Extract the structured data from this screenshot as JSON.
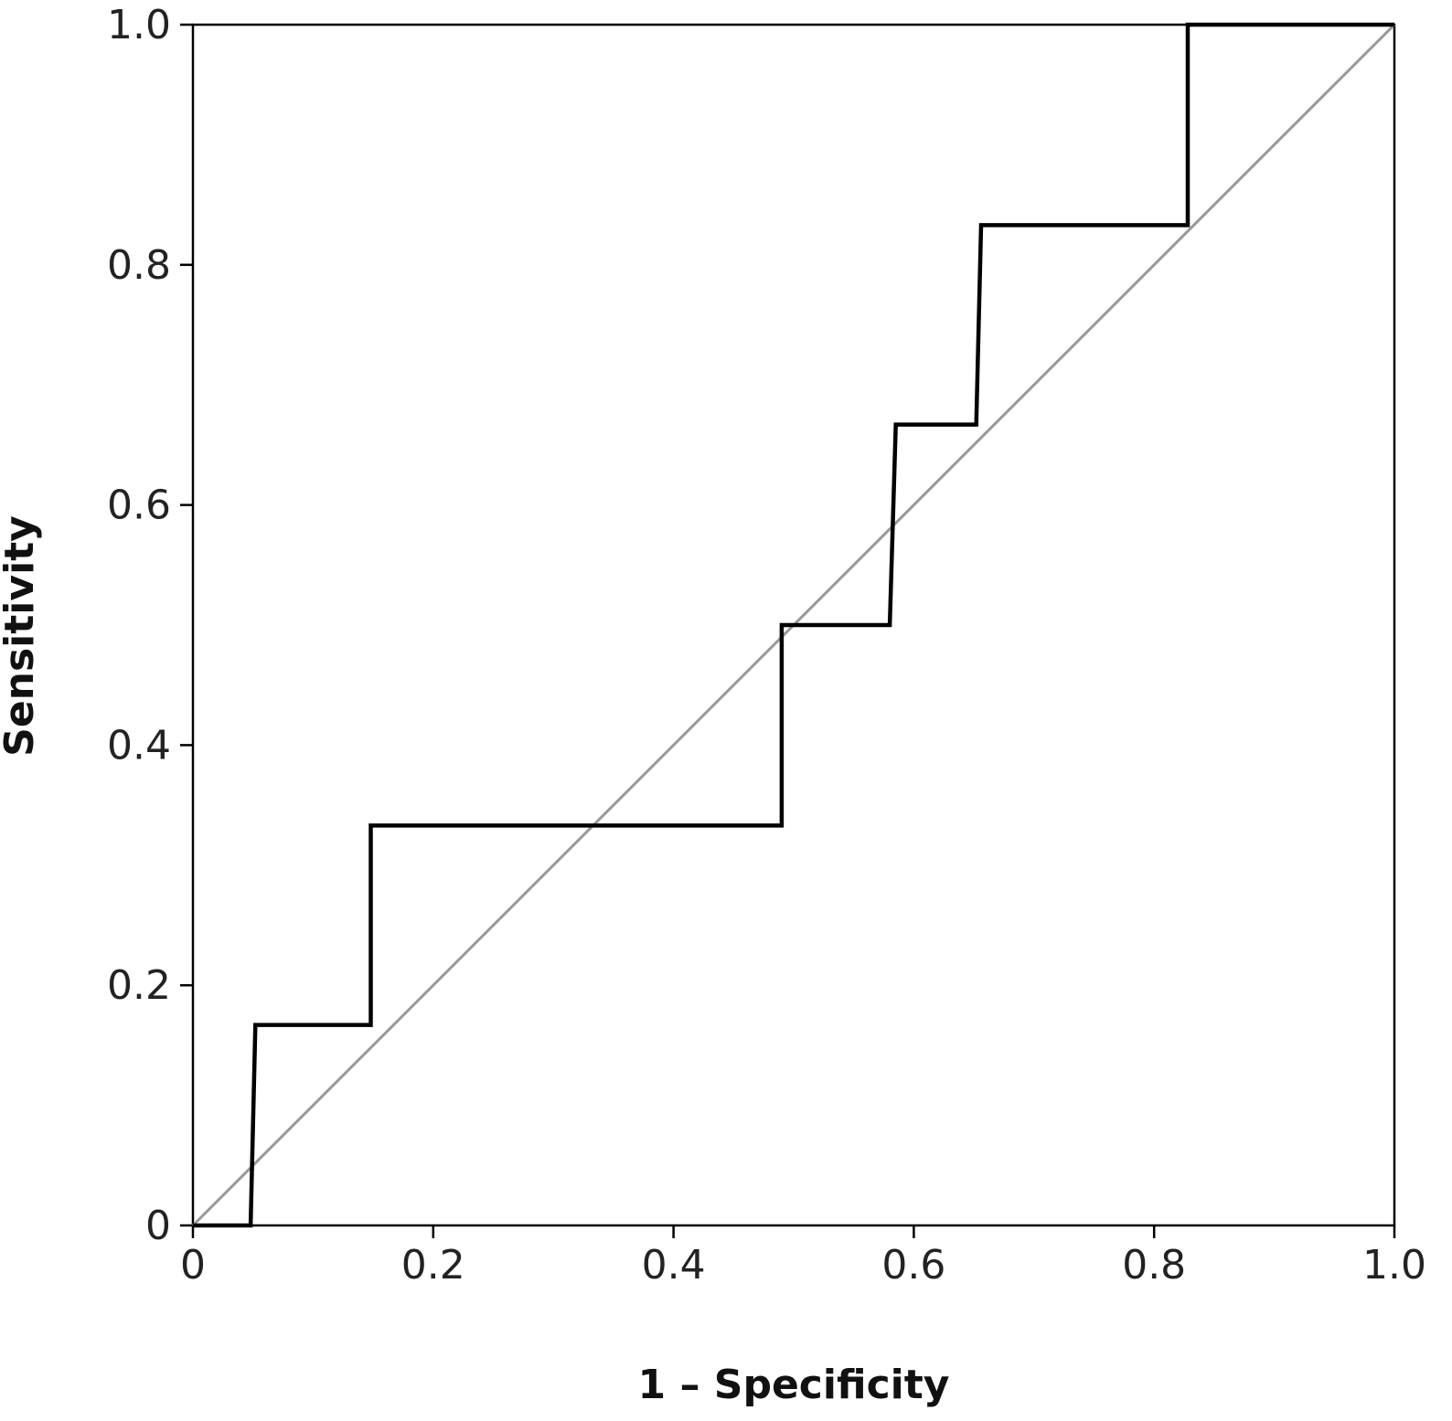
{
  "chart_data": {
    "type": "line",
    "title": "",
    "xlabel": "1 – Specificity",
    "ylabel": "Sensitivity",
    "xlim": [
      0,
      1
    ],
    "ylim": [
      0,
      1
    ],
    "grid": false,
    "legend": "none",
    "x_ticks": [
      0,
      0.2,
      0.4,
      0.6,
      0.8,
      1.0
    ],
    "x_tick_labels": [
      "0",
      "0.2",
      "0.4",
      "0.6",
      "0.8",
      "1.0"
    ],
    "y_ticks": [
      0,
      0.2,
      0.4,
      0.6,
      0.8,
      1.0
    ],
    "y_tick_labels": [
      "0",
      "0.2",
      "0.4",
      "0.6",
      "0.8",
      "1.0"
    ],
    "series": [
      {
        "color": "#000000",
        "x": [
          0,
          0.048,
          0.052,
          0.148,
          0.148,
          0.49,
          0.49,
          0.58,
          0.585,
          0.652,
          0.656,
          0.828,
          0.828,
          1.0
        ],
        "y": [
          0,
          0,
          0.167,
          0.167,
          0.333,
          0.333,
          0.5,
          0.5,
          0.667,
          0.667,
          0.833,
          0.833,
          1.0,
          1.0
        ]
      },
      {
        "color": "#999999",
        "x": [
          0,
          1
        ],
        "y": [
          0,
          1
        ]
      }
    ]
  }
}
